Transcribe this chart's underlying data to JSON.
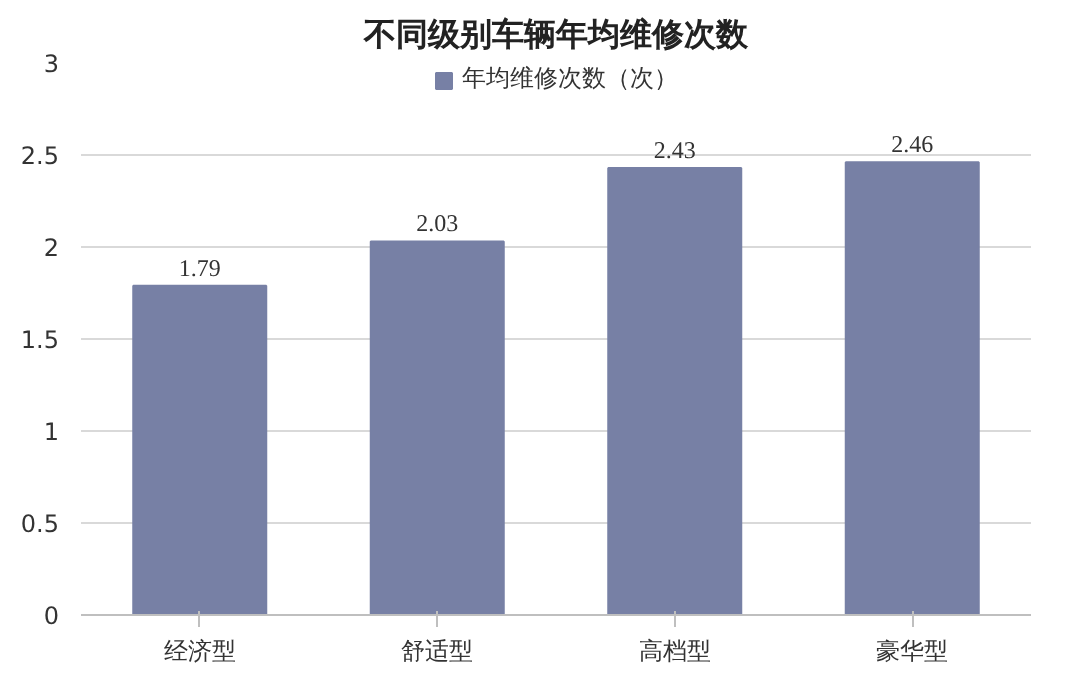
{
  "chart_data": {
    "type": "bar",
    "title": "不同级别车辆年均维修次数",
    "categories": [
      "经济型",
      "舒适型",
      "高档型",
      "豪华型"
    ],
    "series": [
      {
        "name": "年均维修次数（次）",
        "color": "#7780a5",
        "values": [
          1.79,
          2.03,
          2.43,
          2.46
        ]
      }
    ],
    "ylim": [
      0,
      3
    ],
    "yticks": [
      0,
      0.5,
      1,
      1.5,
      2,
      2.5,
      3
    ],
    "grid": "y",
    "legend": "top",
    "data_labels": true
  }
}
